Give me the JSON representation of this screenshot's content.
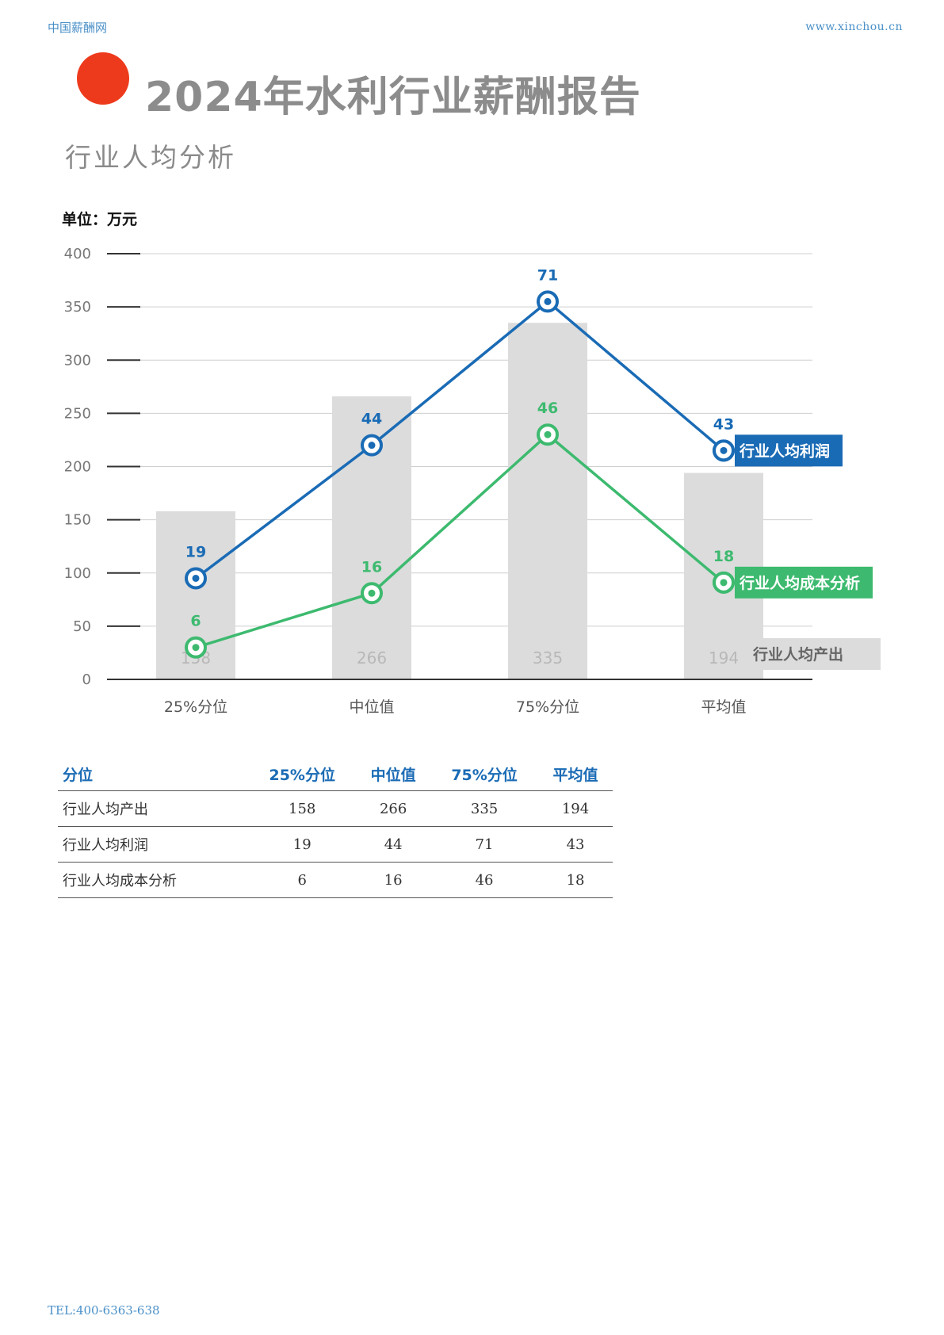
{
  "header": {
    "site_name": "中国薪酬网",
    "url": "www.xinchou.cn"
  },
  "title": "2024年水利行业薪酬报告",
  "subtitle": "行业人均分析",
  "footer": {
    "tel": "TEL:400-6363-638"
  },
  "colors": {
    "accent_dot": "#ee3a1c",
    "profit": "#1a6bb5",
    "cost": "#3dba6f",
    "output_bar": "#dcdcdc"
  },
  "chart_data": {
    "type": "bar",
    "unit_label": "单位：万元",
    "categories": [
      "25%分位",
      "中位值",
      "75%分位",
      "平均值"
    ],
    "ylim": [
      0,
      400
    ],
    "yticks": [
      0,
      50,
      100,
      150,
      200,
      250,
      300,
      350,
      400
    ],
    "grid": true,
    "bars": {
      "name": "行业人均产出",
      "values": [
        158,
        266,
        335,
        194
      ]
    },
    "lines": [
      {
        "name": "行业人均利润",
        "positions": [
          95,
          220,
          355,
          215
        ],
        "labels": [
          19,
          44,
          71,
          43
        ]
      },
      {
        "name": "行业人均成本分析",
        "positions": [
          30,
          81,
          230,
          91
        ],
        "labels": [
          6,
          16,
          46,
          18
        ]
      }
    ]
  },
  "table": {
    "headers": [
      "分位",
      "25%分位",
      "中位值",
      "75%分位",
      "平均值"
    ],
    "rows": [
      [
        "行业人均产出",
        "158",
        "266",
        "335",
        "194"
      ],
      [
        "行业人均利润",
        "19",
        "44",
        "71",
        "43"
      ],
      [
        "行业人均成本分析",
        "6",
        "16",
        "46",
        "18"
      ]
    ]
  }
}
